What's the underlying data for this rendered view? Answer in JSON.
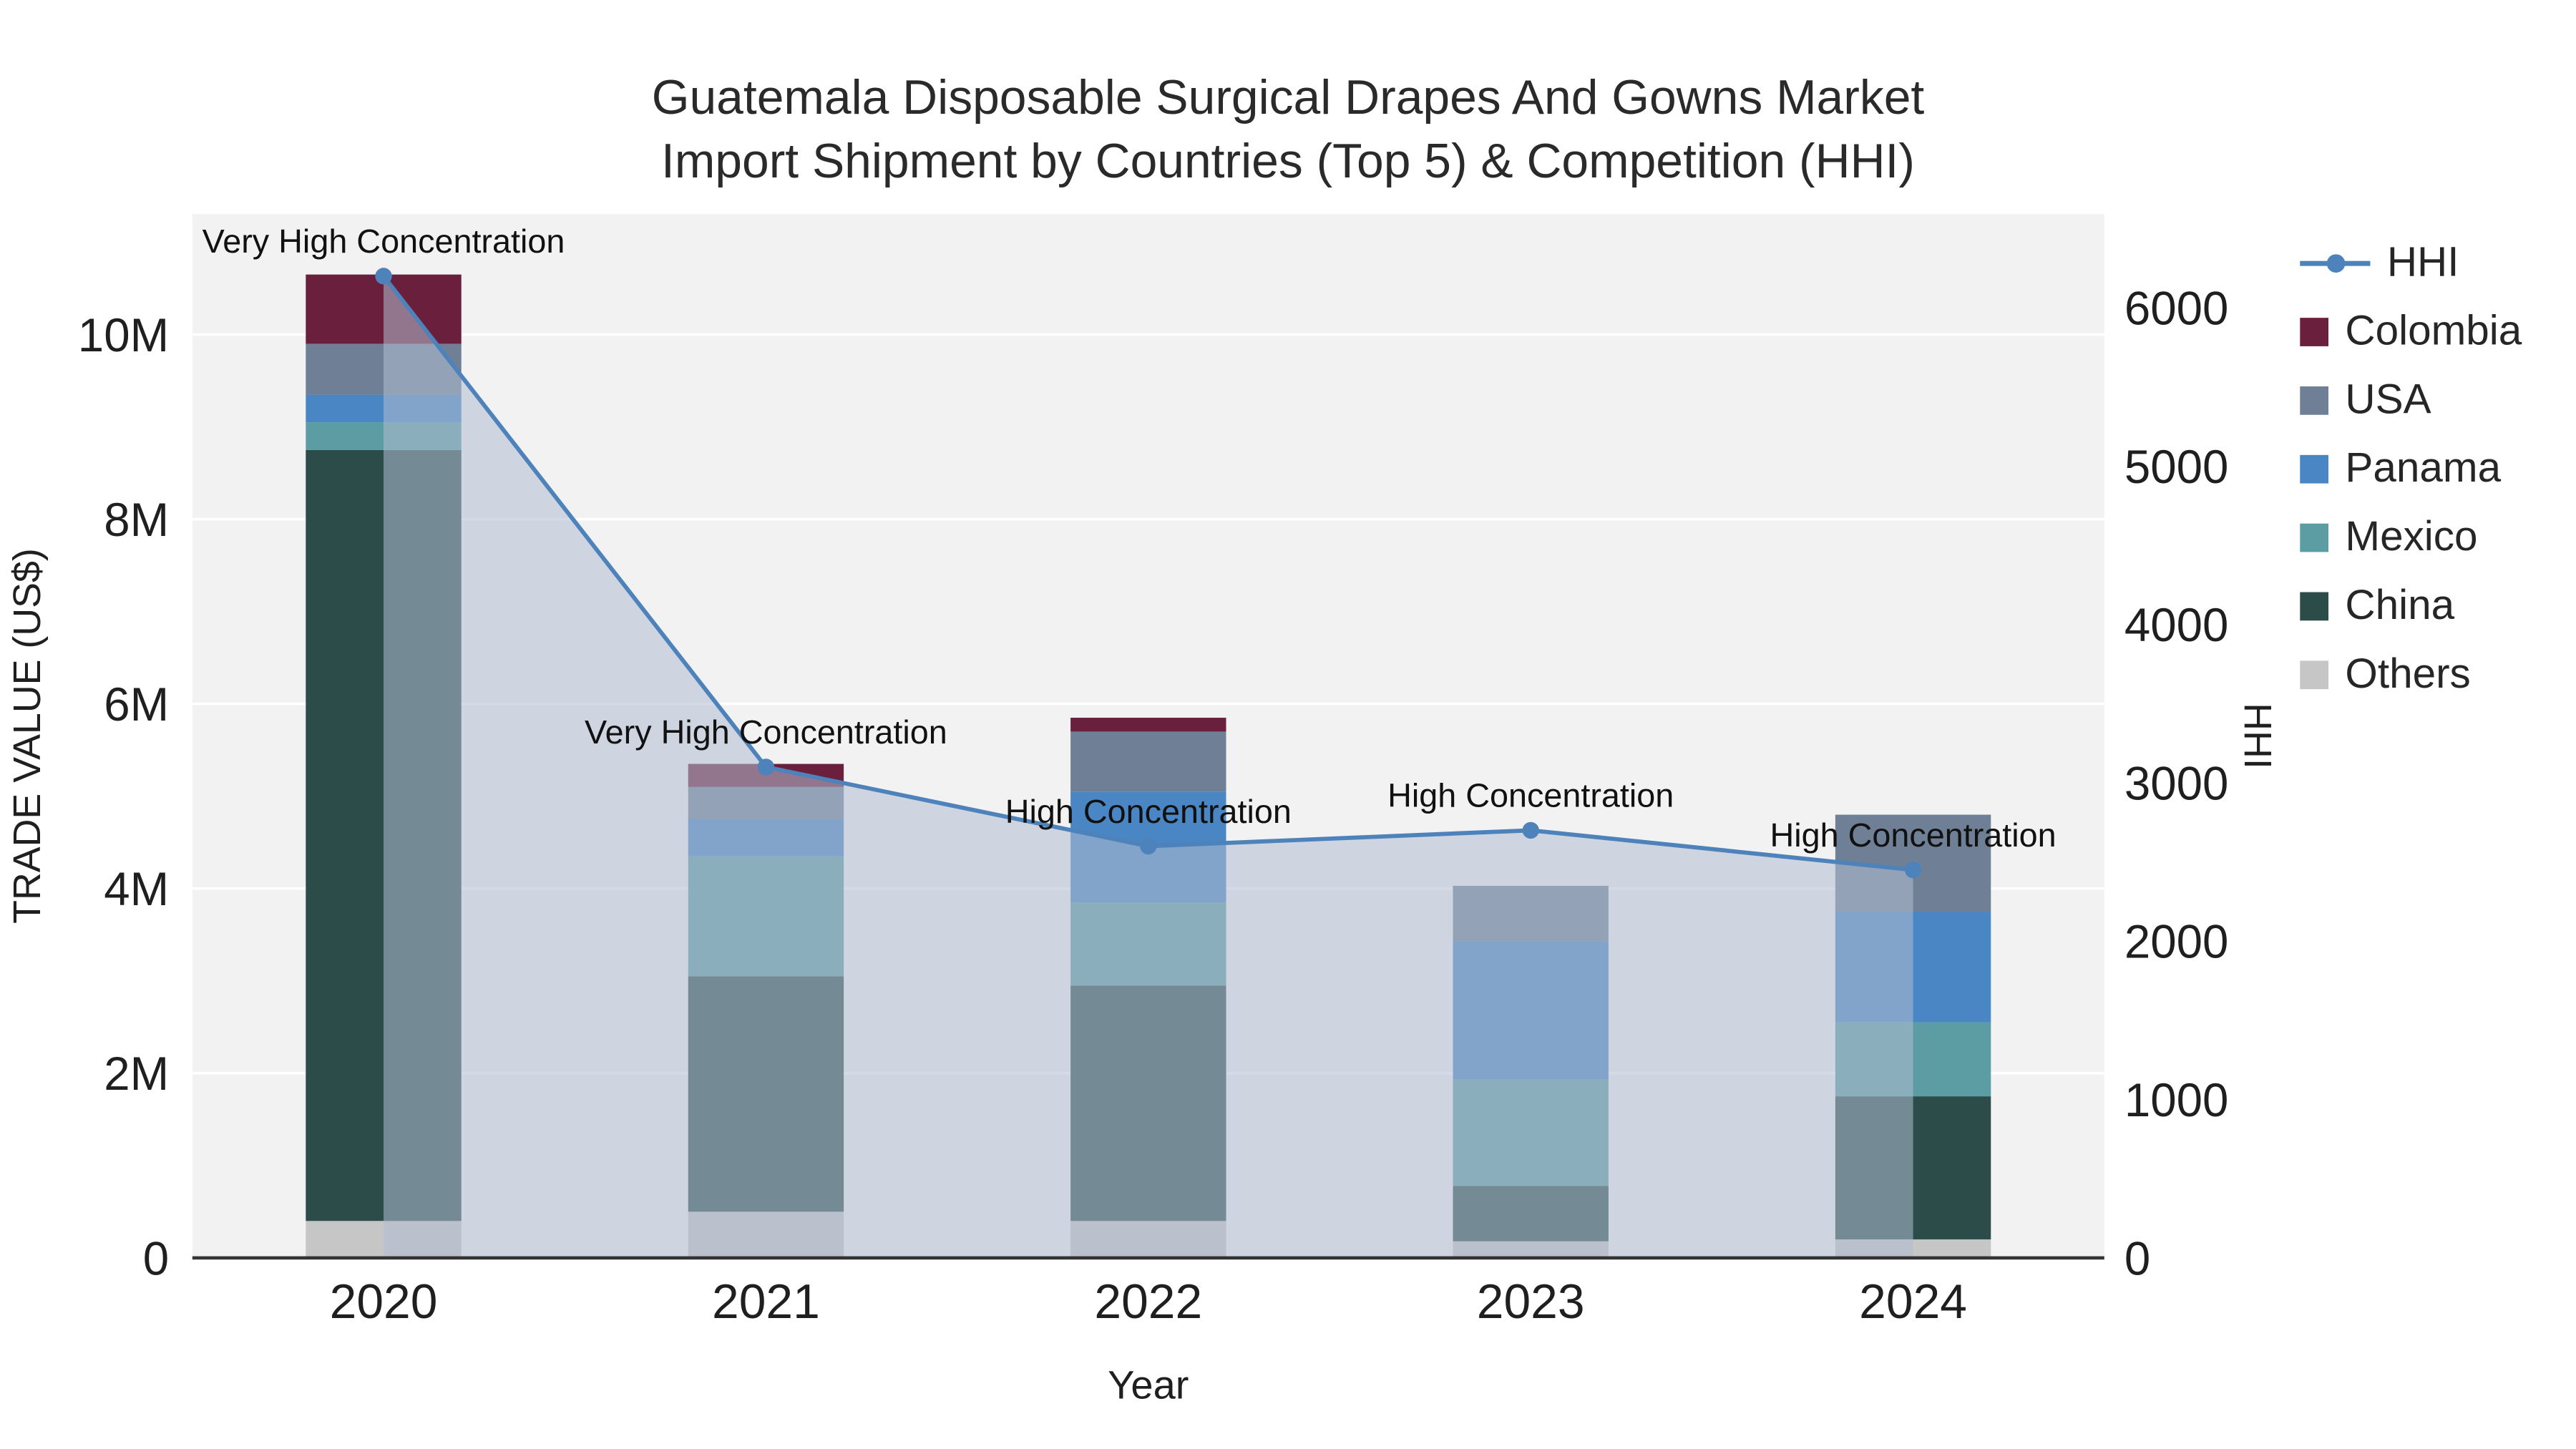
{
  "title": {
    "line1": "Guatemala Disposable Surgical Drapes And Gowns Market",
    "line2": "Import Shipment by Countries (Top 5) & Competition (HHI)"
  },
  "axes": {
    "x": {
      "title": "Year",
      "categories": [
        "2020",
        "2021",
        "2022",
        "2023",
        "2024"
      ]
    },
    "y_left": {
      "title": "TRADE VALUE (US$)",
      "ticks": [
        {
          "v": 0,
          "label": "0"
        },
        {
          "v": 2,
          "label": "2M"
        },
        {
          "v": 4,
          "label": "4M"
        },
        {
          "v": 6,
          "label": "6M"
        },
        {
          "v": 8,
          "label": "8M"
        },
        {
          "v": 10,
          "label": "10M"
        }
      ]
    },
    "y_right": {
      "title": "HHI",
      "ticks": [
        {
          "v": 0,
          "label": "0"
        },
        {
          "v": 1000,
          "label": "1000"
        },
        {
          "v": 2000,
          "label": "2000"
        },
        {
          "v": 3000,
          "label": "3000"
        },
        {
          "v": 4000,
          "label": "4000"
        },
        {
          "v": 5000,
          "label": "5000"
        },
        {
          "v": 6000,
          "label": "6000"
        }
      ]
    }
  },
  "chart_data": {
    "type": "bar",
    "subtype": "stacked-bar-with-line",
    "categories": [
      "2020",
      "2021",
      "2022",
      "2023",
      "2024"
    ],
    "bar_unit": "US$ millions",
    "series": [
      {
        "name": "Others",
        "color": "#c6c6c6",
        "values": [
          0.4,
          0.5,
          0.4,
          0.18,
          0.2
        ]
      },
      {
        "name": "China",
        "color": "#2c4c4a",
        "values": [
          8.35,
          2.55,
          2.55,
          0.6,
          1.55
        ]
      },
      {
        "name": "Mexico",
        "color": "#5c9ca3",
        "values": [
          0.3,
          1.3,
          0.9,
          1.15,
          0.8
        ]
      },
      {
        "name": "Panama",
        "color": "#4a85c4",
        "values": [
          0.3,
          0.4,
          1.2,
          1.5,
          1.2
        ]
      },
      {
        "name": "USA",
        "color": "#6f8096",
        "values": [
          0.55,
          0.35,
          0.65,
          0.6,
          1.05
        ]
      },
      {
        "name": "Colombia",
        "color": "#6a1f3d",
        "values": [
          0.75,
          0.25,
          0.15,
          0.0,
          0.0
        ]
      }
    ],
    "line_series": {
      "name": "HHI",
      "color": "#4d82bb",
      "area_fill": "rgba(176,189,210,0.55)",
      "values": [
        6200,
        3100,
        2600,
        2700,
        2450
      ]
    },
    "annotations": [
      {
        "x": "2020",
        "text": "Very High Concentration"
      },
      {
        "x": "2021",
        "text": "Very High Concentration"
      },
      {
        "x": "2022",
        "text": "High Concentration"
      },
      {
        "x": "2023",
        "text": "High Concentration"
      },
      {
        "x": "2024",
        "text": "High Concentration"
      }
    ],
    "ylim_left": [
      0,
      11.3
    ],
    "ylim_right": [
      0,
      6600
    ],
    "grid": true,
    "legend_position": "right"
  },
  "legend": {
    "items": [
      {
        "label": "HHI",
        "type": "line",
        "color": "#4d82bb"
      },
      {
        "label": "Colombia",
        "type": "swatch",
        "color": "#6a1f3d"
      },
      {
        "label": "USA",
        "type": "swatch",
        "color": "#6f8096"
      },
      {
        "label": "Panama",
        "type": "swatch",
        "color": "#4a85c4"
      },
      {
        "label": "Mexico",
        "type": "swatch",
        "color": "#5c9ca3"
      },
      {
        "label": "China",
        "type": "swatch",
        "color": "#2c4c4a"
      },
      {
        "label": "Others",
        "type": "swatch",
        "color": "#c6c6c6"
      }
    ]
  },
  "colors": {
    "plot_bg": "#f2f2f2",
    "grid": "#ffffff",
    "axis_line": "#333333",
    "text": "#1f1f1f"
  }
}
